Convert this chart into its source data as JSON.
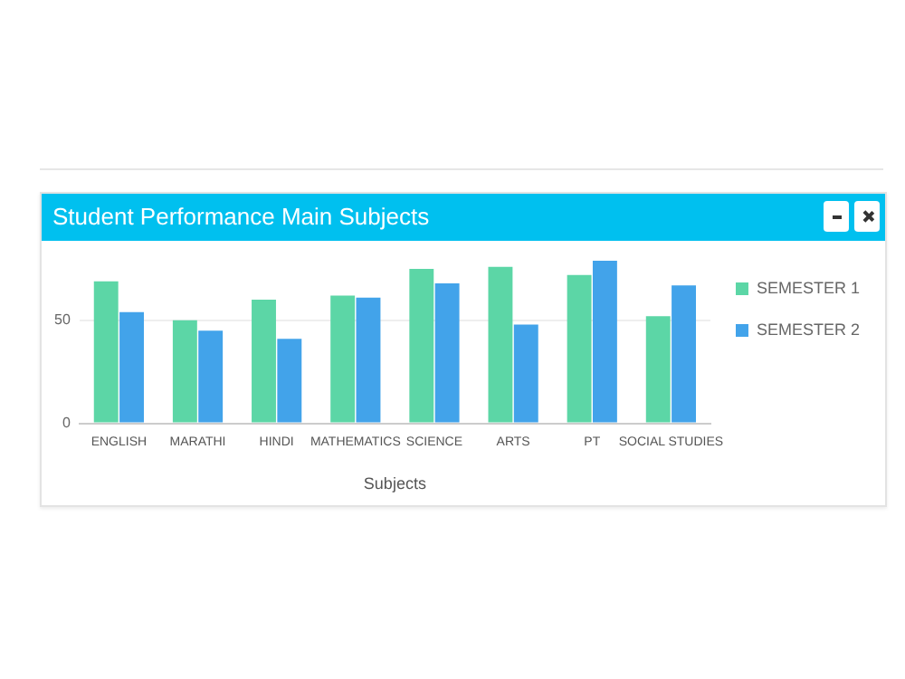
{
  "chart_data": {
    "type": "bar",
    "title": "Student Performance Main Subjects",
    "xlabel": "Subjects",
    "categories": [
      "ENGLISH",
      "MARATHI",
      "HINDI",
      "MATHEMATICS",
      "SCIENCE",
      "ARTS",
      "PT",
      "SOCIAL STUDIES"
    ],
    "series": [
      {
        "name": "SEMESTER 1",
        "color": "#5cd6a6",
        "values": [
          69,
          50,
          60,
          62,
          75,
          76,
          72,
          52
        ]
      },
      {
        "name": "SEMESTER 2",
        "color": "#42a3ea",
        "values": [
          54,
          45,
          41,
          61,
          68,
          48,
          79,
          67
        ]
      }
    ],
    "ylim": [
      0,
      80
    ],
    "yticks": [
      0,
      50
    ],
    "grid": "y",
    "legend": "top right"
  }
}
